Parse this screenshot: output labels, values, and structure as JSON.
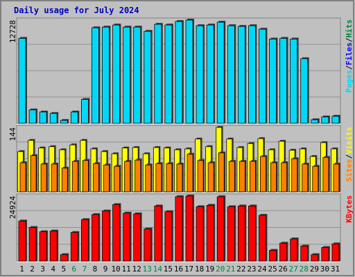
{
  "title": "Daily usage for July 2024",
  "chart_data": [
    {
      "type": "bar",
      "ylim": [
        0,
        12728
      ],
      "yticks": [
        12728
      ],
      "legend_separator": "/",
      "series": [
        {
          "name": "Pages",
          "color": "#00d8f8",
          "values": [
            10477,
            1645,
            1385,
            1212,
            346,
            1385,
            2944,
            11776,
            11862,
            12122,
            11862,
            11862,
            11343,
            12209,
            12122,
            12555,
            12728,
            12035,
            12122,
            12468,
            12035,
            11949,
            12035,
            11603,
            10390,
            10477,
            10390,
            7966,
            433,
            779,
            866
          ]
        }
      ],
      "legend_extra": [
        {
          "name": "Files",
          "color": "#0000ff"
        },
        {
          "name": "Hits",
          "color": "#008040"
        }
      ]
    },
    {
      "type": "bar",
      "ylim": [
        0,
        144
      ],
      "yticks": [
        144
      ],
      "legend_separator": "/",
      "series": [
        {
          "name": "Sites",
          "color": "#ff8000",
          "values": [
            65,
            81,
            62,
            62,
            53,
            68,
            70,
            63,
            60,
            57,
            68,
            71,
            60,
            63,
            63,
            62,
            84,
            70,
            65,
            87,
            68,
            68,
            68,
            79,
            65,
            65,
            74,
            62,
            57,
            77,
            62
          ]
        },
        {
          "name": "Visits",
          "color": "#ffff00",
          "values": [
            90,
            115,
            98,
            101,
            94,
            105,
            115,
            96,
            90,
            85,
            98,
            99,
            85,
            99,
            98,
            94,
            96,
            118,
            101,
            144,
            118,
            99,
            108,
            119,
            94,
            113,
            93,
            96,
            79,
            110,
            96
          ]
        }
      ]
    },
    {
      "type": "bar",
      "ylim": [
        0,
        24924
      ],
      "yticks": [
        24924
      ],
      "series": [
        {
          "name": "KBytes",
          "color": "#ff0000",
          "values": [
            15338,
            12873,
            11229,
            11503,
            2465,
            10956,
            15886,
            17803,
            19172,
            21637,
            18351,
            18077,
            12325,
            21089,
            18898,
            24650,
            24924,
            20816,
            21363,
            24650,
            20816,
            21089,
            21089,
            17529,
            4108,
            6847,
            8491,
            5752,
            2465,
            5204,
            6573
          ]
        }
      ],
      "categories": [
        "1",
        "2",
        "3",
        "4",
        "5",
        "6",
        "7",
        "8",
        "9",
        "10",
        "11",
        "12",
        "13",
        "14",
        "15",
        "16",
        "17",
        "18",
        "19",
        "20",
        "21",
        "22",
        "23",
        "24",
        "25",
        "26",
        "27",
        "28",
        "29",
        "30",
        "31"
      ],
      "category_colors": [
        "#000000",
        "#000000",
        "#000000",
        "#000000",
        "#000000",
        "#008040",
        "#008040",
        "#000000",
        "#000000",
        "#000000",
        "#000000",
        "#000000",
        "#008040",
        "#008040",
        "#000000",
        "#000000",
        "#000000",
        "#000000",
        "#000000",
        "#008040",
        "#008040",
        "#000000",
        "#000000",
        "#000000",
        "#000000",
        "#000000",
        "#008040",
        "#008040",
        "#000000",
        "#000000",
        "#000000"
      ]
    }
  ]
}
